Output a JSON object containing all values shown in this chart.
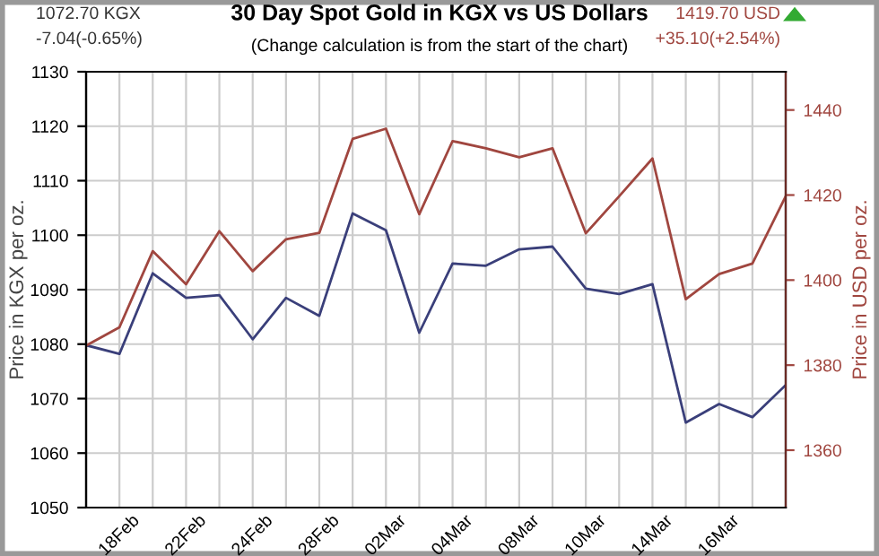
{
  "chart_data": {
    "type": "line",
    "title": "30 Day Spot Gold in KGX vs US Dollars",
    "subtitle": "(Change calculation is from the start of the chart)",
    "annotations": [
      "1072.70 KGX",
      "-7.04(-0.65%)",
      "1419.70 USD",
      "+35.10(+2.54%)"
    ],
    "categories": [
      null,
      "18Feb",
      null,
      "22Feb",
      null,
      "24Feb",
      null,
      "28Feb",
      null,
      "02Mar",
      null,
      "04Mar",
      null,
      "08Mar",
      null,
      "10Mar",
      null,
      "14Mar",
      null,
      "16Mar",
      null,
      null
    ],
    "ylabel": "Price in KGX per oz.",
    "y2label": "Price in USD per oz.",
    "series": [
      {
        "color": "#3a3f7a",
        "values": [
          1079.8,
          1078.2,
          1093.0,
          1088.5,
          1089.0,
          1080.9,
          1088.5,
          1085.2,
          1104.0,
          1100.9,
          1082.1,
          1094.8,
          1094.4,
          1097.4,
          1097.9,
          1090.2,
          1089.2,
          1091.0,
          1065.6,
          1069.0,
          1066.6,
          1072.5
        ]
      },
      {
        "color": "#a0463f",
        "axis": "y2",
        "values": [
          1384.6,
          1388.9,
          1406.8,
          1399.0,
          1411.5,
          1402.1,
          1409.6,
          1411.1,
          1433.2,
          1435.6,
          1415.5,
          1432.7,
          1431.0,
          1428.9,
          1431.0,
          1411.0,
          1419.7,
          1428.6,
          1395.5,
          1401.4,
          1403.9,
          1419.7
        ]
      }
    ],
    "ylim": [
      1050,
      1130
    ],
    "yticks": [
      1050,
      1060,
      1070,
      1080,
      1090,
      1100,
      1110,
      1120,
      1130
    ],
    "y2lim": [
      1346.5,
      1449
    ],
    "y2ticks": [
      1360,
      1380,
      1400,
      1420,
      1440
    ],
    "grid": true,
    "legend": false
  }
}
